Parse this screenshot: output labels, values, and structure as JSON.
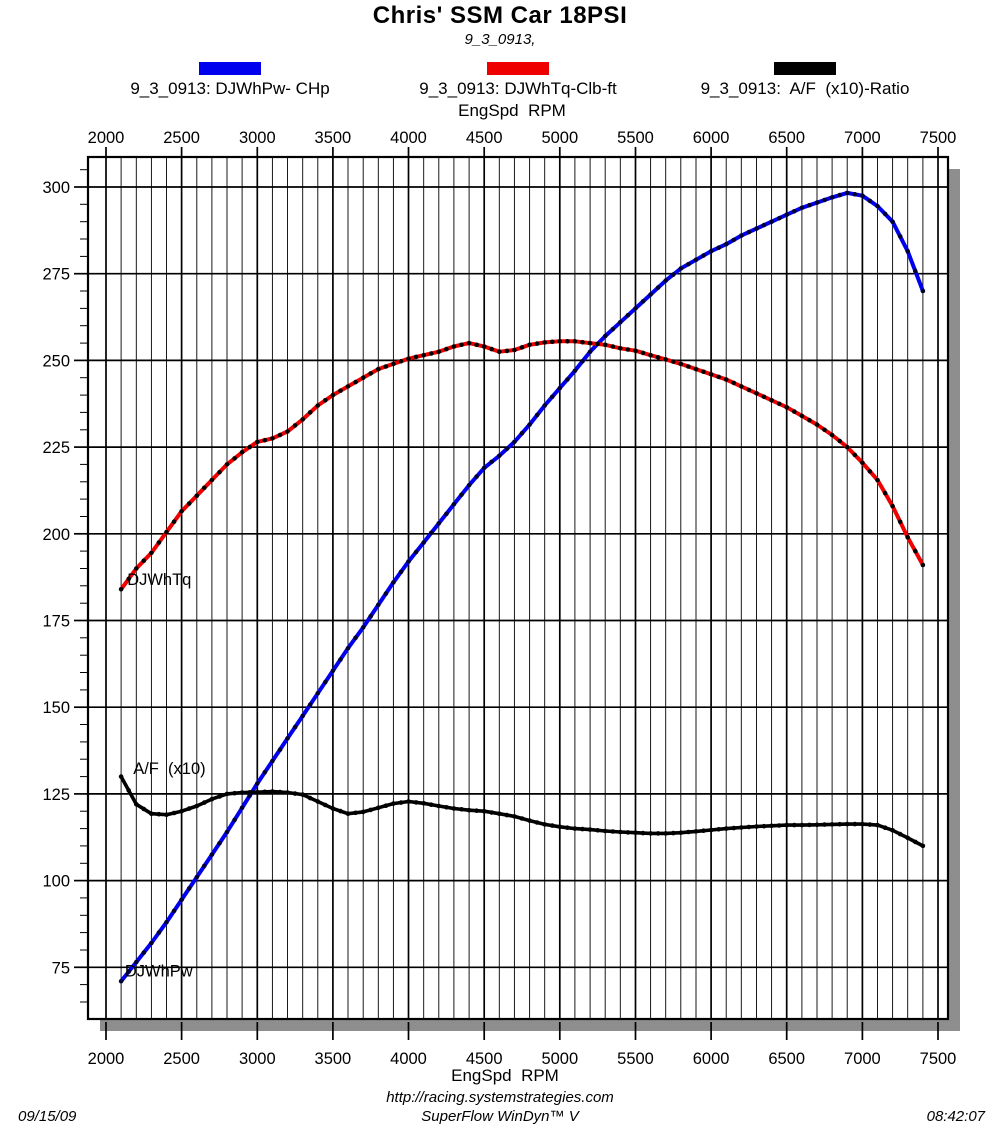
{
  "header": {
    "title": "Chris' SSM Car 18PSI",
    "subtitle": "9_3_0913,"
  },
  "legend": {
    "position": "top",
    "items": [
      {
        "id": "power",
        "label": "9_3_0913: DJWhPw- CHp",
        "color": "#0000ee"
      },
      {
        "id": "torque",
        "label": "9_3_0913: DJWhTq-Clb-ft",
        "color": "#ee0000"
      },
      {
        "id": "afr",
        "label": "9_3_0913:  A/F  (x10)-Ratio",
        "color": "#000000"
      }
    ]
  },
  "chart_data": {
    "type": "line",
    "title": "Chris' SSM Car 18PSI",
    "xlabel": "EngSpd  RPM",
    "ylabel": "",
    "grid": true,
    "xlim": [
      1880,
      7570
    ],
    "ylim": [
      60,
      309
    ],
    "x_ticks": [
      2000,
      2500,
      3000,
      3500,
      4000,
      4500,
      5000,
      5500,
      6000,
      6500,
      7000,
      7500
    ],
    "x_minor_step": 100,
    "y_ticks": [
      75,
      100,
      125,
      150,
      175,
      200,
      225,
      250,
      275,
      300
    ],
    "y_minor_step": 5,
    "x": [
      2100,
      2200,
      2300,
      2400,
      2500,
      2600,
      2700,
      2800,
      2900,
      3000,
      3100,
      3200,
      3300,
      3400,
      3500,
      3600,
      3700,
      3800,
      3900,
      4000,
      4100,
      4200,
      4300,
      4400,
      4500,
      4600,
      4700,
      4800,
      4900,
      5000,
      5100,
      5200,
      5300,
      5400,
      5500,
      5600,
      5700,
      5800,
      5900,
      6000,
      6100,
      6200,
      6300,
      6400,
      6500,
      6600,
      6700,
      6800,
      6900,
      7000,
      7100,
      7200,
      7300,
      7400
    ],
    "series": [
      {
        "id": "power",
        "name": "DJWhPw- CHp",
        "color": "#0000ee",
        "inline_label": "DJWhPw",
        "inline_label_at": {
          "x": 2125,
          "y": 72.3
        },
        "values": [
          71,
          76.5,
          82,
          88,
          94.5,
          101,
          107.5,
          114,
          121,
          128,
          134.5,
          141,
          147.5,
          154,
          160.5,
          167,
          173,
          179.5,
          186,
          192,
          197.5,
          203,
          208.5,
          214,
          219,
          222.5,
          226.5,
          231.5,
          237,
          242,
          247,
          252.5,
          257,
          261,
          265,
          269,
          273,
          276.5,
          279,
          281.5,
          283.5,
          286,
          288,
          290,
          292,
          294,
          295.5,
          297,
          298.3,
          297.5,
          294.5,
          290,
          281.5,
          270
        ]
      },
      {
        "id": "torque",
        "name": "DJWhTq-Clb-ft",
        "color": "#ee0000",
        "inline_label": "DJWhTq",
        "inline_label_at": {
          "x": 2140,
          "y": 185.3
        },
        "values": [
          184,
          190,
          194.5,
          200.5,
          206.5,
          211,
          215.5,
          220,
          223.5,
          226.5,
          227.5,
          229.5,
          233,
          237,
          240,
          242.5,
          245,
          247.5,
          249,
          250.5,
          251.5,
          252.5,
          254,
          255,
          254,
          252.5,
          253,
          254.5,
          255.2,
          255.5,
          255.5,
          255,
          254.5,
          253.5,
          252.8,
          251.5,
          250.3,
          249,
          247.5,
          246,
          244.5,
          242.5,
          240.5,
          238.5,
          236.5,
          234,
          231.5,
          228.5,
          225,
          220.5,
          215.5,
          208,
          199,
          191
        ]
      },
      {
        "id": "afr",
        "name": "A/F (x10)-Ratio",
        "color": "#000000",
        "inline_label": "A/F  (x10)",
        "inline_label_at": {
          "x": 2180,
          "y": 130.8
        },
        "values": [
          130,
          122,
          119.3,
          119,
          120,
          121.5,
          123.5,
          125,
          125.4,
          125.5,
          125.7,
          125.4,
          124.8,
          122.8,
          120.8,
          119.3,
          119.8,
          121,
          122.2,
          122.8,
          122.3,
          121.5,
          120.8,
          120.3,
          120,
          119.3,
          118.5,
          117.3,
          116.2,
          115.5,
          115,
          114.7,
          114.3,
          114,
          113.8,
          113.6,
          113.6,
          113.8,
          114.2,
          114.6,
          115,
          115.3,
          115.6,
          115.8,
          116,
          116,
          116.1,
          116.2,
          116.3,
          116.3,
          116,
          114.5,
          112.3,
          110
        ]
      }
    ]
  },
  "footer": {
    "date": "09/15/09",
    "url": "http://racing.systemstrategies.com",
    "app": "SuperFlow WinDyn™ V",
    "time": "08:42:07"
  }
}
